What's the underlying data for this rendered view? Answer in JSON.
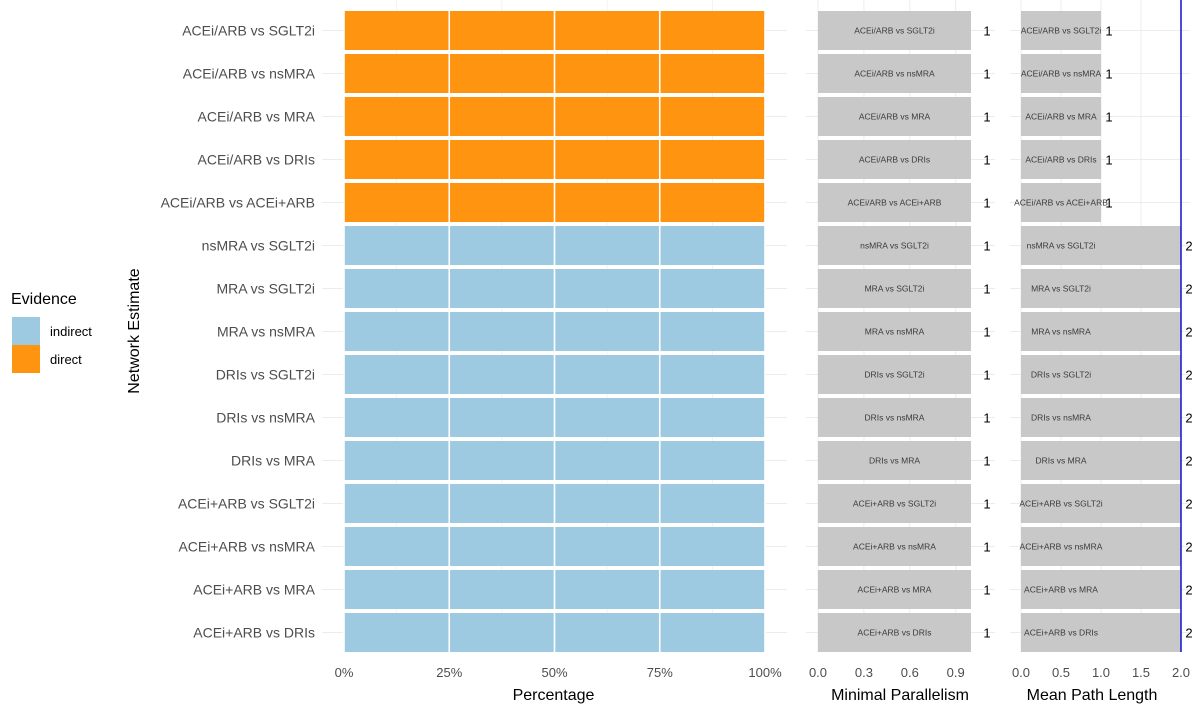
{
  "legend": {
    "title": "Evidence",
    "items": [
      {
        "label": "indirect",
        "color": "#9ecae1"
      },
      {
        "label": "direct",
        "color": "#ff9410"
      }
    ]
  },
  "chart_data": [
    {
      "type": "bar",
      "orientation": "horizontal",
      "stacked": true,
      "title": "",
      "xlabel": "Percentage",
      "ylabel": "Network Estimate",
      "xlim": [
        0,
        1
      ],
      "x_ticks": [
        "0%",
        "25%",
        "50%",
        "75%",
        "100%"
      ],
      "categories": [
        "ACEi/ARB vs SGLT2i",
        "ACEi/ARB vs nsMRA",
        "ACEi/ARB vs MRA",
        "ACEi/ARB vs DRIs",
        "ACEi/ARB vs ACEi+ARB",
        "nsMRA vs SGLT2i",
        "MRA vs SGLT2i",
        "MRA vs nsMRA",
        "DRIs vs SGLT2i",
        "DRIs vs nsMRA",
        "DRIs vs MRA",
        "ACEi+ARB vs SGLT2i",
        "ACEi+ARB vs nsMRA",
        "ACEi+ARB vs MRA",
        "ACEi+ARB vs DRIs"
      ],
      "series": [
        {
          "name": "direct",
          "values": [
            1,
            1,
            1,
            1,
            1,
            0,
            0,
            0,
            0,
            0,
            0,
            0,
            0,
            0,
            0
          ]
        },
        {
          "name": "indirect",
          "values": [
            0,
            0,
            0,
            0,
            0,
            1,
            1,
            1,
            1,
            1,
            1,
            1,
            1,
            1,
            1
          ]
        }
      ],
      "grid": true,
      "legend_position": "left"
    },
    {
      "type": "bar",
      "orientation": "horizontal",
      "xlabel": "Minimal Parallelism",
      "xlim": [
        0,
        1
      ],
      "x_ticks": [
        "0.0",
        "0.3",
        "0.6",
        "0.9"
      ],
      "values": [
        1,
        1,
        1,
        1,
        1,
        1,
        1,
        1,
        1,
        1,
        1,
        1,
        1,
        1,
        1
      ],
      "value_labels": [
        "1",
        "1",
        "1",
        "1",
        "1",
        "1",
        "1",
        "1",
        "1",
        "1",
        "1",
        "1",
        "1",
        "1",
        "1"
      ],
      "grid": true
    },
    {
      "type": "bar",
      "orientation": "horizontal",
      "xlabel": "Mean Path Length",
      "xlim": [
        0,
        2
      ],
      "x_ticks": [
        "0.0",
        "0.5",
        "1.0",
        "1.5",
        "2.0"
      ],
      "reference_line": 2,
      "values": [
        1,
        1,
        1,
        1,
        1,
        2,
        2,
        2,
        2,
        2,
        2,
        2,
        2,
        2,
        2
      ],
      "value_labels": [
        "1",
        "1",
        "1",
        "1",
        "1",
        "2",
        "2",
        "2",
        "2",
        "2",
        "2",
        "2",
        "2",
        "2",
        "2"
      ],
      "grid": true
    }
  ]
}
